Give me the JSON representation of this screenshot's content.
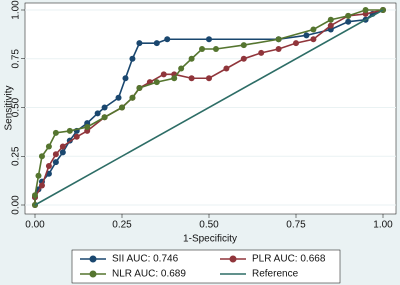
{
  "chart_data": {
    "type": "line",
    "xlabel": "1-Specificity",
    "ylabel": "Sensitivity",
    "xlim": [
      0,
      1
    ],
    "ylim": [
      0,
      1
    ],
    "xticks": [
      {
        "value": 0,
        "label": "0.00"
      },
      {
        "value": 0.25,
        "label": "0.25"
      },
      {
        "value": 0.5,
        "label": "0.50"
      },
      {
        "value": 0.75,
        "label": "0.75"
      },
      {
        "value": 1,
        "label": "1.00"
      }
    ],
    "yticks": [
      {
        "value": 0,
        "label": "0.00"
      },
      {
        "value": 0.25,
        "label": "0.25"
      },
      {
        "value": 0.5,
        "label": "0.50"
      },
      {
        "value": 0.75,
        "label": "0.75"
      },
      {
        "value": 1,
        "label": "1.00"
      }
    ],
    "grid": true,
    "series": [
      {
        "name": "SII AUC: 0.746",
        "color": "#1a476f",
        "markers": true,
        "x": [
          0,
          0,
          0.01,
          0.02,
          0.04,
          0.06,
          0.08,
          0.1,
          0.12,
          0.15,
          0.18,
          0.2,
          0.24,
          0.26,
          0.28,
          0.3,
          0.35,
          0.38,
          0.5,
          0.7,
          0.78,
          0.85,
          0.9,
          0.95,
          0.97,
          1
        ],
        "values": [
          0,
          0.04,
          0.08,
          0.12,
          0.16,
          0.22,
          0.27,
          0.33,
          0.38,
          0.42,
          0.47,
          0.5,
          0.55,
          0.65,
          0.75,
          0.83,
          0.83,
          0.85,
          0.85,
          0.85,
          0.87,
          0.9,
          0.94,
          0.95,
          0.98,
          1
        ]
      },
      {
        "name": "PLR AUC: 0.668",
        "color": "#90353b",
        "markers": true,
        "x": [
          0,
          0,
          0.02,
          0.04,
          0.06,
          0.08,
          0.12,
          0.15,
          0.2,
          0.25,
          0.28,
          0.3,
          0.33,
          0.37,
          0.4,
          0.45,
          0.5,
          0.55,
          0.6,
          0.65,
          0.7,
          0.75,
          0.8,
          0.85,
          0.9,
          0.95,
          1
        ],
        "values": [
          0,
          0.04,
          0.1,
          0.2,
          0.26,
          0.3,
          0.35,
          0.38,
          0.45,
          0.5,
          0.55,
          0.6,
          0.63,
          0.67,
          0.67,
          0.65,
          0.65,
          0.7,
          0.75,
          0.78,
          0.8,
          0.83,
          0.85,
          0.92,
          0.97,
          0.98,
          1
        ]
      },
      {
        "name": "NLR AUC: 0.689",
        "color": "#55752f",
        "markers": true,
        "x": [
          0,
          0,
          0.01,
          0.02,
          0.04,
          0.06,
          0.1,
          0.15,
          0.2,
          0.25,
          0.28,
          0.3,
          0.35,
          0.4,
          0.42,
          0.45,
          0.48,
          0.52,
          0.6,
          0.7,
          0.8,
          0.85,
          0.9,
          0.95,
          1
        ],
        "values": [
          0,
          0.05,
          0.15,
          0.25,
          0.3,
          0.37,
          0.38,
          0.4,
          0.45,
          0.5,
          0.55,
          0.6,
          0.63,
          0.65,
          0.7,
          0.75,
          0.8,
          0.8,
          0.82,
          0.85,
          0.9,
          0.95,
          0.97,
          1,
          1
        ]
      },
      {
        "name": "Reference",
        "color": "#2d6d66",
        "markers": false,
        "x": [
          0,
          1
        ],
        "values": [
          0,
          1
        ]
      }
    ]
  }
}
